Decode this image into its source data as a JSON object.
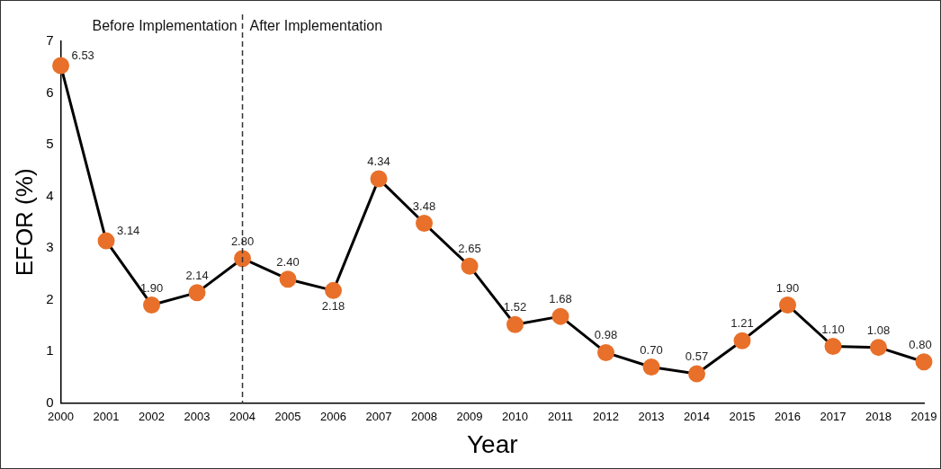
{
  "chart_data": {
    "type": "line",
    "xlabel": "Year",
    "ylabel": "EFOR (%)",
    "categories": [
      "2000",
      "2001",
      "2002",
      "2003",
      "2004",
      "2005",
      "2006",
      "2007",
      "2008",
      "2009",
      "2010",
      "2011",
      "2012",
      "2013",
      "2014",
      "2015",
      "2016",
      "2017",
      "2018",
      "2019"
    ],
    "series": [
      {
        "color": "#e8702a",
        "values": [
          6.53,
          3.14,
          1.9,
          2.14,
          2.8,
          2.4,
          2.18,
          4.34,
          3.48,
          2.65,
          1.52,
          1.68,
          0.98,
          0.7,
          0.57,
          1.21,
          1.9,
          1.1,
          1.08,
          0.8
        ],
        "value_labels": [
          "6.53",
          "3.14",
          "1.90",
          "2.14",
          "2.80",
          "2.40",
          "2.18",
          "4.34",
          "3.48",
          "2.65",
          "1.52",
          "1.68",
          "0.98",
          "0.70",
          "0.57",
          "1.21",
          "1.90",
          "1.10",
          "1.08",
          "0.80"
        ]
      }
    ],
    "ylim": [
      0,
      7
    ],
    "yticks": [
      0,
      1,
      2,
      3,
      4,
      5,
      6,
      7
    ],
    "grid": false,
    "legend": false,
    "marker": "circle",
    "line_style": "solid",
    "ref_lines": [
      {
        "axis": "x",
        "value": "2004",
        "line_style": "dashed",
        "color": "#333333"
      }
    ],
    "annotations": [
      "Before Implementation",
      "After Implementation"
    ]
  }
}
